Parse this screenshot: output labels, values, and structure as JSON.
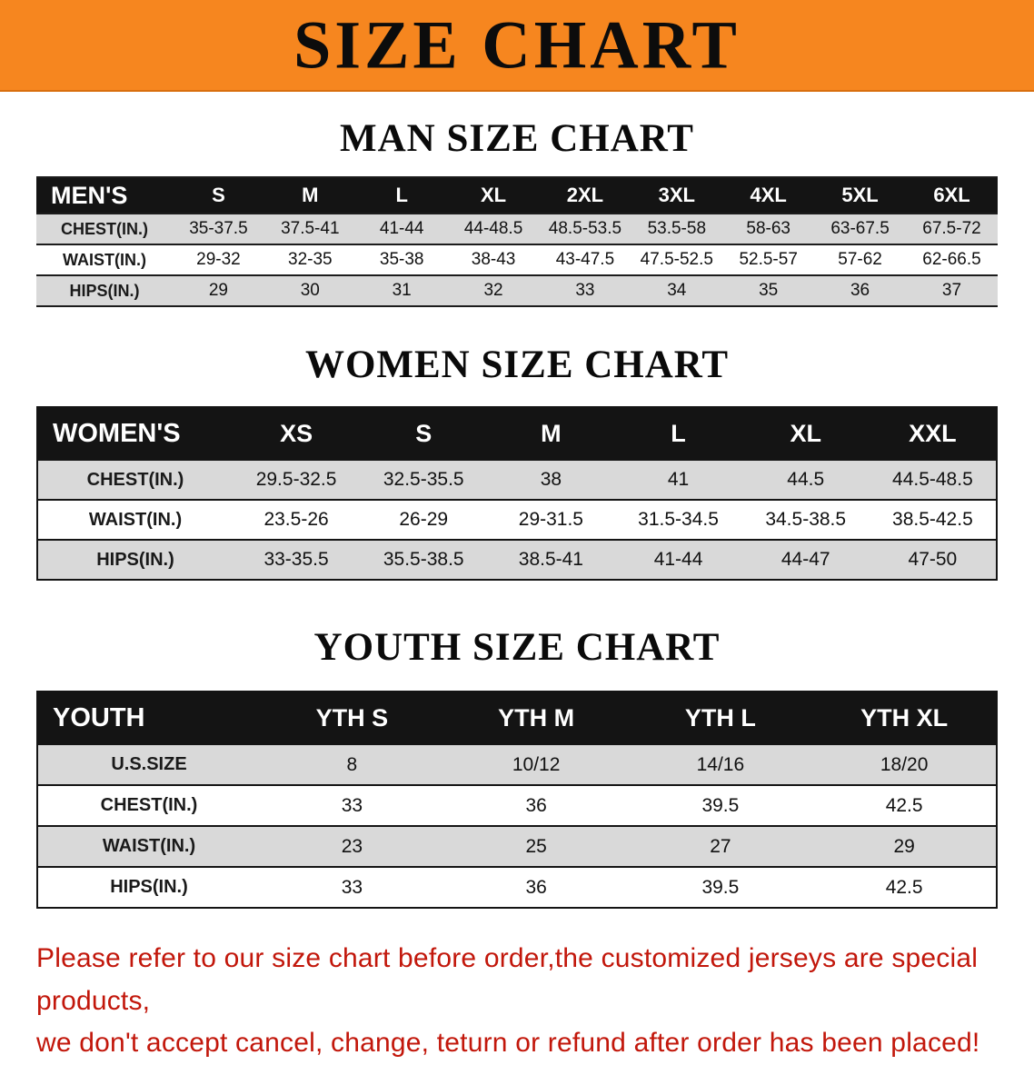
{
  "banner": {
    "title": "SIZE CHART",
    "bg_color": "#F6861F"
  },
  "colors": {
    "header_row_bg": "#141414",
    "alt_row_gray": "#D9D9D9",
    "disclaimer_red": "#C2170B"
  },
  "men": {
    "heading": "MAN SIZE CHART",
    "table": {
      "header": [
        "MEN'S",
        "S",
        "M",
        "L",
        "XL",
        "2XL",
        "3XL",
        "4XL",
        "5XL",
        "6XL"
      ],
      "rows": [
        [
          "CHEST(IN.)",
          "35-37.5",
          "37.5-41",
          "41-44",
          "44-48.5",
          "48.5-53.5",
          "53.5-58",
          "58-63",
          "63-67.5",
          "67.5-72"
        ],
        [
          "WAIST(IN.)",
          "29-32",
          "32-35",
          "35-38",
          "38-43",
          "43-47.5",
          "47.5-52.5",
          "52.5-57",
          "57-62",
          "62-66.5"
        ],
        [
          "HIPS(IN.)",
          "29",
          "30",
          "31",
          "32",
          "33",
          "34",
          "35",
          "36",
          "37"
        ]
      ]
    }
  },
  "women": {
    "heading": "WOMEN SIZE CHART",
    "table": {
      "header": [
        "WOMEN'S",
        "XS",
        "S",
        "M",
        "L",
        "XL",
        "XXL"
      ],
      "rows": [
        [
          "CHEST(IN.)",
          "29.5-32.5",
          "32.5-35.5",
          "38",
          "41",
          "44.5",
          "44.5-48.5"
        ],
        [
          "WAIST(IN.)",
          "23.5-26",
          "26-29",
          "29-31.5",
          "31.5-34.5",
          "34.5-38.5",
          "38.5-42.5"
        ],
        [
          "HIPS(IN.)",
          "33-35.5",
          "35.5-38.5",
          "38.5-41",
          "41-44",
          "44-47",
          "47-50"
        ]
      ]
    }
  },
  "youth": {
    "heading": "YOUTH SIZE CHART",
    "table": {
      "header": [
        "YOUTH",
        "YTH S",
        "YTH M",
        "YTH L",
        "YTH XL"
      ],
      "rows": [
        [
          "U.S.SIZE",
          "8",
          "10/12",
          "14/16",
          "18/20"
        ],
        [
          "CHEST(IN.)",
          "33",
          "36",
          "39.5",
          "42.5"
        ],
        [
          "WAIST(IN.)",
          "23",
          "25",
          "27",
          "29"
        ],
        [
          "HIPS(IN.)",
          "33",
          "36",
          "39.5",
          "42.5"
        ]
      ]
    }
  },
  "disclaimer": {
    "line1": "Please refer to our size chart before order,the customized jerseys are special products,",
    "line2": "we don't accept cancel, change, teturn or refund after order has been placed!"
  }
}
